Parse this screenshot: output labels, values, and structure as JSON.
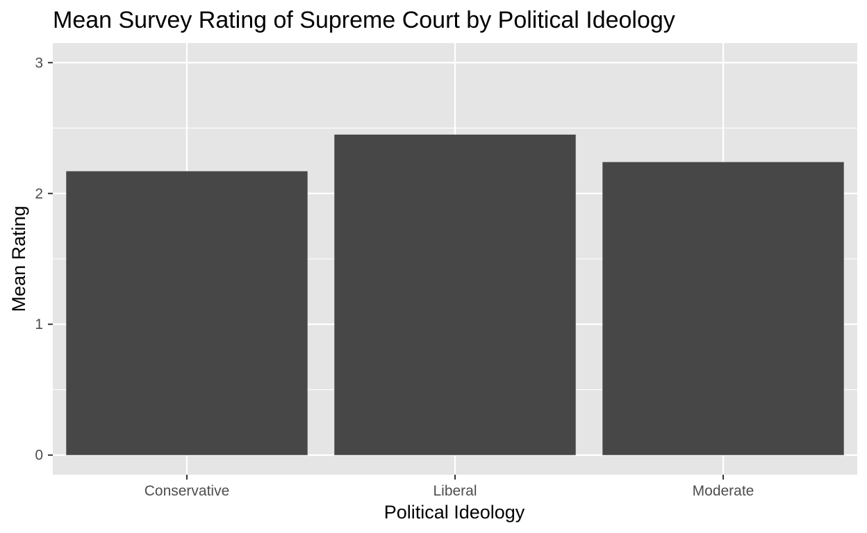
{
  "chart_data": {
    "type": "bar",
    "title": "Mean Survey Rating of Supreme Court by Political Ideology",
    "xlabel": "Political Ideology",
    "ylabel": "Mean Rating",
    "categories": [
      "Conservative",
      "Liberal",
      "Moderate"
    ],
    "values": [
      2.17,
      2.45,
      2.24
    ],
    "ylim": [
      -0.15,
      3.15
    ],
    "yticks": [
      0,
      1,
      2,
      3
    ],
    "y_minor_ticks": [
      0.5,
      1.5,
      2.5
    ],
    "grid": true,
    "legend": "none",
    "colors": {
      "bar": "#474747",
      "panel": "#e5e5e5",
      "grid": "#ffffff",
      "tick": "#333333"
    }
  }
}
